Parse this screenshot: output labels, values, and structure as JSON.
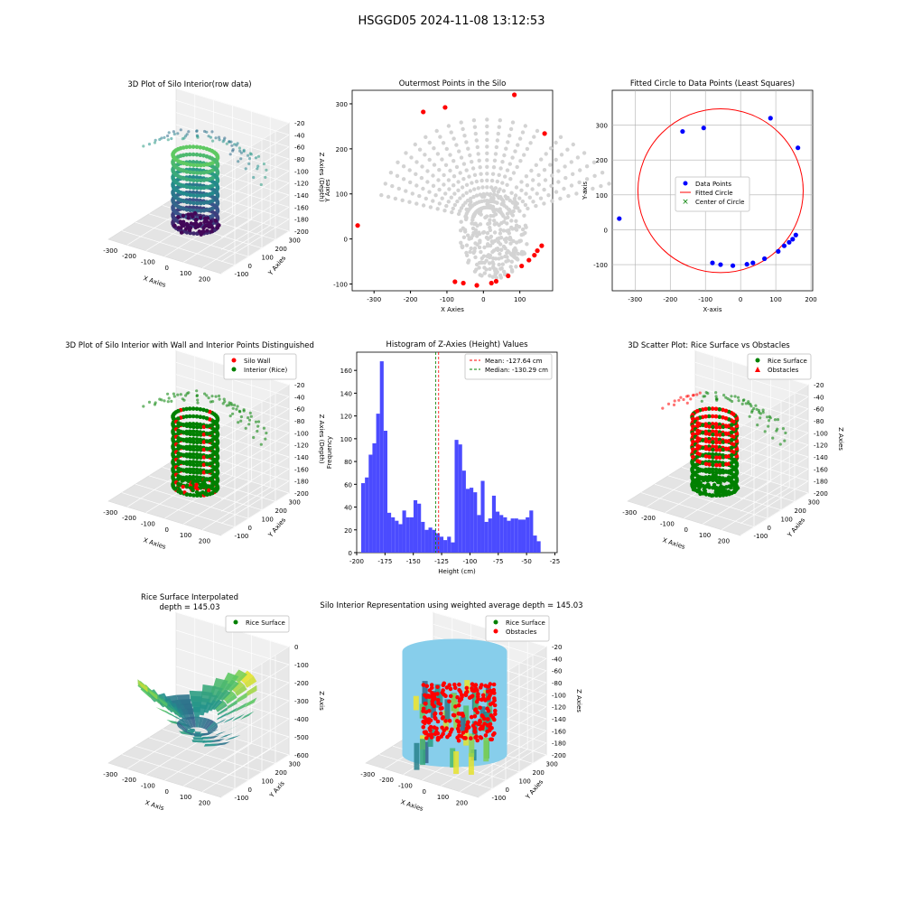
{
  "figure": {
    "title": "HSGGD05 2024-11-08 13:12:53"
  },
  "colors": {
    "wall": "#ff0000",
    "rice": "#008000",
    "gray": "#d3d3d3",
    "blue": "#0000ff",
    "hist": "#4b4bff",
    "cyl": "#87ceeb"
  },
  "chart_data": [
    {
      "id": "raw3d",
      "type": "scatter3d",
      "title": "3D Plot of Silo Interior(row data)",
      "xlabel": "X Axies",
      "ylabel": "Y Axies",
      "zlabel": "Z Axies (Depth)",
      "xticks": [
        -300,
        -200,
        -100,
        0,
        100,
        200
      ],
      "yticks": [
        -100,
        0,
        100,
        200,
        300
      ],
      "zticks": [
        -20,
        -40,
        -60,
        -80,
        -100,
        -120,
        -140,
        -160,
        -180,
        -200
      ],
      "colormap": "viridis"
    },
    {
      "id": "outer",
      "type": "scatter",
      "title": "Outermost Points in the Silo",
      "xlabel": "X Axies",
      "ylabel": "Y Axies",
      "xlim": [
        -360,
        190
      ],
      "ylim": [
        -115,
        330
      ],
      "xticks": [
        -300,
        -200,
        -100,
        0,
        100
      ],
      "yticks": [
        -100,
        0,
        100,
        200,
        300
      ],
      "outermost_points": [
        [
          -345,
          30
        ],
        [
          -165,
          282
        ],
        [
          -105,
          292
        ],
        [
          85,
          320
        ],
        [
          168,
          234
        ],
        [
          -78,
          -95
        ],
        [
          -55,
          -98
        ],
        [
          -18,
          -103
        ],
        [
          22,
          -98
        ],
        [
          35,
          -94
        ],
        [
          68,
          -82
        ],
        [
          105,
          -60
        ],
        [
          125,
          -47
        ],
        [
          140,
          -36
        ],
        [
          148,
          -26
        ],
        [
          160,
          -15
        ]
      ]
    },
    {
      "id": "circle",
      "type": "scatter",
      "title": "Fitted Circle to Data Points (Least Squares)",
      "xlabel": "X-axis",
      "ylabel": "Y-axis",
      "xlim": [
        -365,
        205
      ],
      "ylim": [
        -175,
        400
      ],
      "xticks": [
        -300,
        -200,
        -100,
        0,
        100,
        200
      ],
      "yticks": [
        -100,
        0,
        100,
        200,
        300
      ],
      "grid": true,
      "legend": [
        "Data Points",
        "Fitted Circle",
        "Center of Circle"
      ],
      "data_points": [
        [
          -345,
          32
        ],
        [
          -165,
          282
        ],
        [
          -105,
          292
        ],
        [
          85,
          320
        ],
        [
          163,
          235
        ],
        [
          -80,
          -95
        ],
        [
          -57,
          -100
        ],
        [
          -22,
          -103
        ],
        [
          18,
          -99
        ],
        [
          35,
          -95
        ],
        [
          68,
          -83
        ],
        [
          107,
          -62
        ],
        [
          124,
          -46
        ],
        [
          138,
          -36
        ],
        [
          148,
          -27
        ],
        [
          157,
          -15
        ]
      ],
      "center": [
        -57,
        112
      ],
      "radius": 235
    },
    {
      "id": "wall3d",
      "type": "scatter3d",
      "title": "3D Plot of Silo Interior with Wall and Interior Points Distinguished",
      "xlabel": "X Axies",
      "ylabel": "Y Axies",
      "zlabel": "Z Axies (Depth)",
      "legend": [
        "Silo Wall",
        "Interior (Rice)"
      ],
      "xticks": [
        -300,
        -200,
        -100,
        0,
        100,
        200
      ],
      "yticks": [
        -100,
        0,
        100,
        200,
        300
      ],
      "zticks": [
        -20,
        -40,
        -60,
        -80,
        -100,
        -120,
        -140,
        -160,
        -180,
        -200
      ]
    },
    {
      "id": "hist",
      "type": "bar",
      "title": "Histogram of Z-Axies (Height) Values",
      "xlabel": "Height (cm)",
      "ylabel": "Frequency",
      "xlim": [
        -200,
        -23
      ],
      "ylim": [
        0,
        176
      ],
      "xticks": [
        -200,
        -175,
        -150,
        -125,
        -100,
        -75,
        -50,
        -25
      ],
      "yticks": [
        0,
        20,
        40,
        60,
        80,
        100,
        120,
        140,
        160
      ],
      "bin_start": -196,
      "bin_width": 3.3,
      "values": [
        61,
        66,
        86,
        96,
        122,
        168,
        107,
        35,
        31,
        28,
        25,
        37,
        31,
        31,
        46,
        43,
        27,
        20,
        22,
        20,
        17,
        14,
        11,
        14,
        9,
        99,
        95,
        72,
        56,
        57,
        53,
        33,
        63,
        27,
        30,
        50,
        36,
        33,
        31,
        28,
        30,
        30,
        29,
        29,
        31,
        37,
        15,
        10
      ],
      "mean": -127.64,
      "median": -130.29,
      "legend": [
        "Mean: -127.64 cm",
        "Median: -130.29 cm"
      ]
    },
    {
      "id": "rice3d",
      "type": "scatter3d",
      "title": "3D Scatter Plot: Rice Surface vs Obstacles",
      "xlabel": "X Axies",
      "ylabel": "Y Axies",
      "zlabel": "Z Axies",
      "legend": [
        "Rice Surface",
        "Obstacles"
      ],
      "xticks": [
        -300,
        -200,
        -100,
        0,
        100,
        200
      ],
      "yticks": [
        -100,
        0,
        100,
        200,
        300
      ],
      "zticks": [
        -20,
        -40,
        -60,
        -80,
        -100,
        -120,
        -140,
        -160,
        -180,
        -200
      ]
    },
    {
      "id": "interp3d",
      "type": "surface3d",
      "title": "Rice Surface Interpolated",
      "subtitle": "depth = 145.03",
      "xlabel": "X Axis",
      "ylabel": "Y Axis",
      "zlabel": "Z Axis",
      "legend": [
        "Rice Surface"
      ],
      "xticks": [
        -300,
        -200,
        -100,
        0,
        100,
        200
      ],
      "yticks": [
        -100,
        0,
        100,
        200,
        300
      ],
      "zticks": [
        0,
        -100,
        -200,
        -300,
        -400,
        -500,
        -600
      ]
    },
    {
      "id": "cyl3d",
      "type": "surface3d",
      "title": "Silo Interior Representation using weighted average depth = 145.03",
      "xlabel": "X Axies",
      "ylabel": "Y Axies",
      "zlabel": "Z Axies",
      "legend": [
        "Rice Surface",
        "Obstacles"
      ],
      "xticks": [
        -300,
        -200,
        -100,
        0,
        100,
        200
      ],
      "yticks": [
        -100,
        0,
        100,
        200,
        300
      ],
      "zticks": [
        -20,
        -40,
        -60,
        -80,
        -100,
        -120,
        -140,
        -160,
        -180,
        -200
      ]
    }
  ]
}
